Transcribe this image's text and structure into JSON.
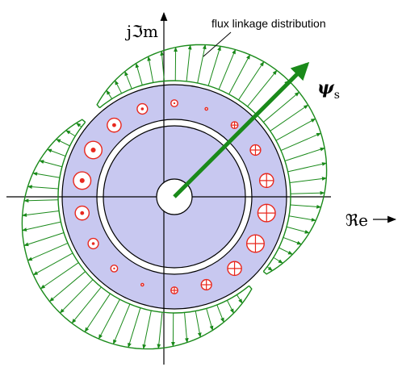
{
  "labels": {
    "imag_axis": "jℑm",
    "real_axis": "ℜe",
    "flux_caption": "flux linkage distribution",
    "vector_symbol": "ψ",
    "vector_subscript": "s"
  },
  "colors": {
    "stator": "#c8c8f0",
    "flux": "#1a8a1a",
    "conductor": "#e8281e",
    "outline": "#000000"
  },
  "flux_vector_angle_deg": 45,
  "conductors": {
    "positive_symbol": "dot",
    "negative_symbol": "cross",
    "positive_angles_deg": [
      90,
      110,
      130,
      150,
      170,
      190,
      210,
      230,
      250
    ],
    "negative_angles_deg": [
      270,
      290,
      310,
      330,
      350,
      10,
      30,
      50,
      70
    ],
    "magnitudes": [
      1,
      2,
      3,
      4,
      4,
      3,
      2,
      1,
      0
    ]
  }
}
